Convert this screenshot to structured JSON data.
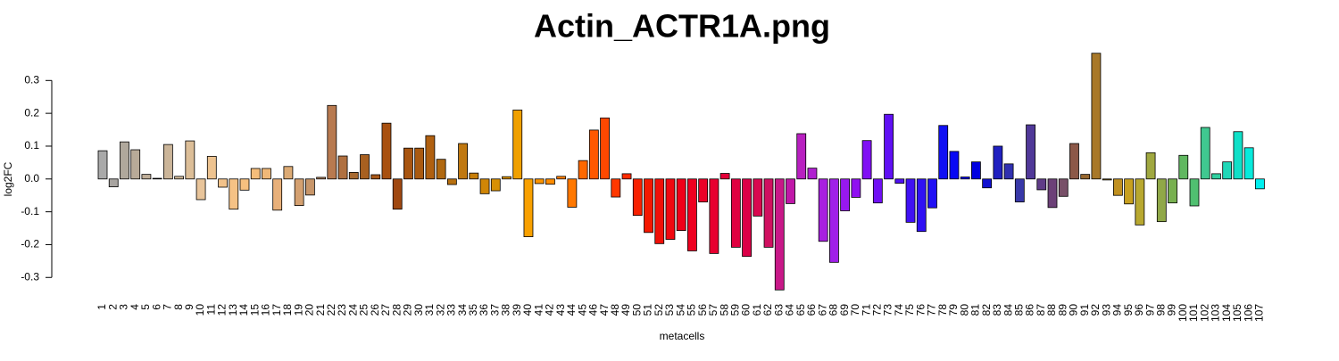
{
  "chart_data": {
    "type": "bar",
    "title": "Actin_ACTR1A.png",
    "x_label": "metacells",
    "y_label": "log2FC",
    "categories": [
      "1",
      "2",
      "3",
      "4",
      "5",
      "6",
      "7",
      "8",
      "9",
      "10",
      "11",
      "12",
      "13",
      "14",
      "15",
      "16",
      "17",
      "18",
      "19",
      "20",
      "21",
      "22",
      "23",
      "24",
      "25",
      "26",
      "27",
      "28",
      "29",
      "30",
      "31",
      "32",
      "33",
      "34",
      "35",
      "36",
      "37",
      "38",
      "39",
      "40",
      "41",
      "42",
      "43",
      "44",
      "45",
      "46",
      "47",
      "48",
      "49",
      "50",
      "51",
      "52",
      "53",
      "54",
      "55",
      "56",
      "57",
      "58",
      "59",
      "60",
      "61",
      "62",
      "63",
      "64",
      "65",
      "66",
      "67",
      "68",
      "69",
      "70",
      "71",
      "72",
      "73",
      "74",
      "75",
      "76",
      "77",
      "78",
      "79",
      "80",
      "81",
      "82",
      "83",
      "84",
      "85",
      "86",
      "87",
      "88",
      "89",
      "90",
      "91",
      "92",
      "93",
      "94",
      "95",
      "96",
      "97",
      "98",
      "99",
      "100",
      "101",
      "102",
      "103",
      "104",
      "105",
      "106",
      "107"
    ],
    "values": [
      0.086,
      -0.024,
      0.113,
      0.089,
      0.014,
      0.002,
      0.105,
      0.008,
      0.116,
      -0.063,
      0.069,
      -0.025,
      -0.092,
      -0.034,
      0.032,
      0.032,
      -0.095,
      0.038,
      -0.081,
      -0.049,
      0.005,
      0.224,
      0.07,
      0.02,
      0.074,
      0.013,
      0.17,
      -0.092,
      0.094,
      0.094,
      0.132,
      0.06,
      -0.017,
      0.108,
      0.018,
      -0.045,
      -0.036,
      0.007,
      0.21,
      -0.176,
      -0.014,
      -0.016,
      0.008,
      -0.086,
      0.056,
      0.149,
      0.186,
      -0.055,
      0.016,
      -0.111,
      -0.163,
      -0.197,
      -0.184,
      -0.157,
      -0.219,
      -0.07,
      -0.227,
      0.017,
      -0.208,
      -0.236,
      -0.113,
      -0.208,
      -0.338,
      -0.075,
      0.138,
      0.033,
      -0.19,
      -0.254,
      -0.097,
      -0.056,
      0.117,
      -0.073,
      0.197,
      -0.013,
      -0.132,
      -0.16,
      -0.088,
      0.163,
      0.084,
      0.006,
      0.052,
      -0.027,
      0.1,
      0.046,
      -0.07,
      0.165,
      -0.033,
      -0.087,
      -0.053,
      0.108,
      0.014,
      0.383,
      -0.003,
      -0.05,
      -0.076,
      -0.14,
      0.08,
      -0.13,
      -0.073,
      0.072,
      -0.082,
      0.157,
      0.016,
      0.052,
      0.144,
      0.095,
      -0.03
    ],
    "colors": [
      "#a9a9a9",
      "#a8a4a0",
      "#b0a89c",
      "#b8aa98",
      "#bfae98",
      "#c4b098",
      "#cbb599",
      "#d0b898",
      "#dcbe98",
      "#e8c49a",
      "#edc390",
      "#f2c28a",
      "#f6c285",
      "#f7c07f",
      "#f5bd7a",
      "#f0b878",
      "#e8b07a",
      "#dcaa74",
      "#d4a070",
      "#c8966a",
      "#bf8a60",
      "#b87a50",
      "#b07040",
      "#a86a30",
      "#a86020",
      "#a85818",
      "#a85010",
      "#a04810",
      "#a85510",
      "#aa5a10",
      "#b06010",
      "#b06810",
      "#b87010",
      "#c07810",
      "#c87e08",
      "#d08606",
      "#d89004",
      "#e09802",
      "#f0a000",
      "#f8a000",
      "#fc9400",
      "#ff8c00",
      "#ff8000",
      "#ff7800",
      "#ff6800",
      "#ff5800",
      "#ff4800",
      "#ff3800",
      "#ff2c00",
      "#f82000",
      "#f41800",
      "#f01008",
      "#f00810",
      "#f00018",
      "#ee0020",
      "#ec0028",
      "#e80030",
      "#e40038",
      "#e00040",
      "#dc0048",
      "#d8084f",
      "#d01060",
      "#c81888",
      "#c018a8",
      "#b820c0",
      "#b020d0",
      "#a820e0",
      "#a020e8",
      "#9818ee",
      "#9010f0",
      "#8010f4",
      "#7010f4",
      "#6010f4",
      "#5010f4",
      "#4010f4",
      "#3010f4",
      "#2010f4",
      "#1010f4",
      "#0808f4",
      "#0000f0",
      "#0000e0",
      "#1010d0",
      "#2020c0",
      "#3030b0",
      "#3838a8",
      "#503898",
      "#603c88",
      "#6c4078",
      "#785068",
      "#8c5848",
      "#986830",
      "#a87828",
      "#b08820",
      "#c09020",
      "#c8a020",
      "#b8a830",
      "#a0a840",
      "#90a848",
      "#78b050",
      "#60b860",
      "#50c070",
      "#40c890",
      "#30d0a0",
      "#20d8b8",
      "#10e0c8",
      "#08eadc",
      "#00f0f0"
    ],
    "ylim": [
      -0.34,
      0.385
    ],
    "yticks": [
      -0.3,
      -0.2,
      -0.1,
      {
        "value": 0,
        "label": "0.0"
      },
      0.1,
      0.2,
      0.3
    ]
  }
}
